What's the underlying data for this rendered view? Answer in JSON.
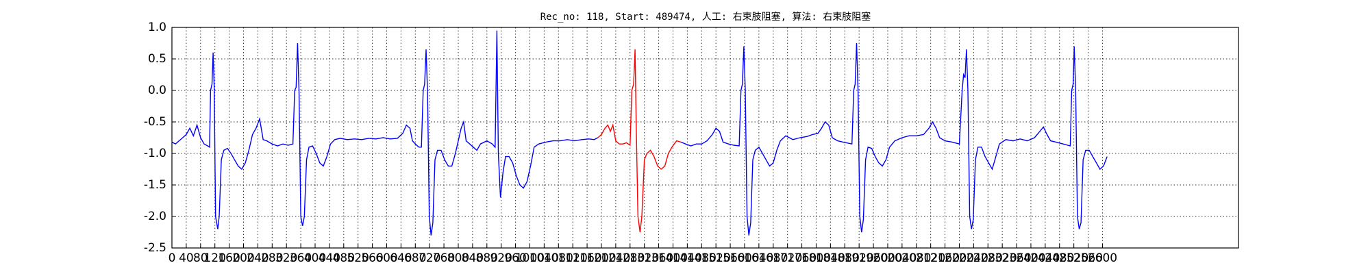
{
  "chart_data": {
    "type": "line",
    "title": "Rec_no: 118, Start: 489474, 人工: 右束肢阻塞, 算法: 右束肢阻塞",
    "xlim": [
      0,
      2980
    ],
    "ylim": [
      -2.5,
      1.0
    ],
    "xticks": [
      0,
      40,
      80,
      120,
      160,
      200,
      240,
      280,
      320,
      360,
      400,
      440,
      480,
      520,
      560,
      600,
      640,
      680,
      720,
      760,
      800,
      840,
      880,
      920,
      960,
      1000,
      1040,
      1080,
      1120,
      1160,
      1200,
      1240,
      1280,
      1320,
      1360,
      1400,
      1440,
      1480,
      1520,
      1560,
      1600,
      1640,
      1680,
      1720,
      1760,
      1800,
      1840,
      1880,
      1920,
      1960,
      2000,
      2040,
      2080,
      2120,
      2160,
      2200,
      2240,
      2280,
      2320,
      2360,
      2400,
      2440,
      2480,
      2520,
      2560,
      2600
    ],
    "yticks": [
      {
        "value": -2.5,
        "label": "-2.5"
      },
      {
        "value": -2.0,
        "label": "-2.0"
      },
      {
        "value": -1.5,
        "label": "-1.5"
      },
      {
        "value": -1.0,
        "label": "-1.0"
      },
      {
        "value": -0.5,
        "label": "-0.5"
      },
      {
        "value": 0.0,
        "label": "0.0"
      },
      {
        "value": 0.5,
        "label": "0.5"
      },
      {
        "value": 1.0,
        "label": "1.0"
      }
    ],
    "grid": true,
    "series": [
      {
        "color": "#0000ff",
        "x": [
          0,
          10,
          20,
          30,
          40,
          50,
          60,
          70,
          80,
          90,
          100,
          105,
          108,
          112,
          115,
          118,
          122,
          128,
          132,
          138,
          145,
          155,
          165,
          175,
          185,
          195,
          205,
          215,
          225,
          235,
          245,
          255,
          265,
          280,
          295,
          310,
          325,
          338,
          343,
          347,
          351,
          355,
          360,
          365,
          370,
          376,
          383,
          393,
          403,
          413,
          423,
          433,
          443,
          455,
          470,
          490,
          510,
          530,
          550,
          570,
          590,
          610,
          630,
          645,
          655,
          665,
          672,
          680,
          690,
          697,
          702,
          706,
          710,
          714,
          719,
          724,
          729,
          735,
          742,
          752,
          762,
          772,
          782,
          792,
          800,
          808,
          815,
          822,
          832,
          842,
          852,
          862,
          880,
          895,
          903,
          908,
          912,
          918,
          925,
          932,
          942,
          952,
          962,
          972,
          982,
          992,
          1002,
          1012,
          1025,
          1045,
          1065,
          1085,
          1105,
          1125,
          1145,
          1165,
          1180,
          1190,
          1300,
          1422,
          1435,
          1450,
          1465,
          1480,
          1495,
          1510,
          1520,
          1530,
          1540,
          1555,
          1570,
          1585,
          1590,
          1594,
          1598,
          1602,
          1607,
          1612,
          1617,
          1623,
          1630,
          1640,
          1650,
          1660,
          1670,
          1680,
          1690,
          1700,
          1715,
          1735,
          1755,
          1775,
          1790,
          1805,
          1815,
          1825,
          1835,
          1845,
          1860,
          1875,
          1900,
          1905,
          1909,
          1913,
          1917,
          1922,
          1927,
          1932,
          1938,
          1945,
          1955,
          1965,
          1975,
          1985,
          1995,
          2005,
          2020,
          2040,
          2060,
          2080,
          2100,
          2115,
          2125,
          2135,
          2145,
          2160,
          2180,
          2200,
          2208,
          2212,
          2216,
          2220,
          2224,
          2229,
          2234,
          2239,
          2245,
          2252,
          2262,
          2272,
          2282,
          2292,
          2302,
          2312,
          2330,
          2350,
          2370,
          2390,
          2410,
          2425,
          2435,
          2445,
          2455,
          2470,
          2490,
          2510,
          2514,
          2518,
          2521,
          2525,
          2530,
          2535,
          2540,
          2546,
          2553,
          2563,
          2573,
          2583,
          2593,
          2603,
          2613
        ],
        "values": [
          -0.82,
          -0.85,
          -0.8,
          -0.75,
          -0.7,
          -0.6,
          -0.72,
          -0.55,
          -0.75,
          -0.85,
          -0.88,
          -0.9,
          0.0,
          0.1,
          0.6,
          0.05,
          -2.0,
          -2.2,
          -2.0,
          -1.1,
          -0.95,
          -0.92,
          -1.0,
          -1.1,
          -1.2,
          -1.25,
          -1.15,
          -0.95,
          -0.7,
          -0.6,
          -0.45,
          -0.78,
          -0.8,
          -0.85,
          -0.88,
          -0.85,
          -0.87,
          -0.85,
          0.0,
          0.05,
          0.75,
          0.0,
          -2.0,
          -2.15,
          -2.0,
          -1.1,
          -0.9,
          -0.88,
          -1.0,
          -1.15,
          -1.2,
          -1.05,
          -0.85,
          -0.78,
          -0.76,
          -0.78,
          -0.77,
          -0.78,
          -0.76,
          -0.77,
          -0.75,
          -0.77,
          -0.76,
          -0.68,
          -0.55,
          -0.6,
          -0.8,
          -0.85,
          -0.9,
          -0.9,
          0.0,
          0.1,
          0.65,
          0.0,
          -2.0,
          -2.3,
          -2.1,
          -1.1,
          -0.95,
          -0.95,
          -1.1,
          -1.2,
          -1.2,
          -1.0,
          -0.8,
          -0.6,
          -0.5,
          -0.8,
          -0.85,
          -0.9,
          -0.95,
          -0.85,
          -0.8,
          -0.85,
          -0.9,
          0.95,
          -1.0,
          -1.7,
          -1.3,
          -1.05,
          -1.05,
          -1.15,
          -1.35,
          -1.5,
          -1.55,
          -1.45,
          -1.2,
          -0.9,
          -0.85,
          -0.82,
          -0.8,
          -0.8,
          -0.78,
          -0.8,
          -0.78,
          -0.77,
          -0.78,
          -0.75,
          null,
          -0.82,
          -0.85,
          -0.88,
          -0.85,
          -0.85,
          -0.8,
          -0.7,
          -0.6,
          -0.65,
          -0.82,
          -0.85,
          -0.87,
          -0.88,
          0.0,
          0.1,
          0.7,
          0.0,
          -2.0,
          -2.3,
          -2.1,
          -1.1,
          -0.95,
          -0.9,
          -1.0,
          -1.1,
          -1.2,
          -1.15,
          -0.95,
          -0.8,
          -0.72,
          -0.78,
          -0.75,
          -0.73,
          -0.7,
          -0.68,
          -0.6,
          -0.5,
          -0.55,
          -0.75,
          -0.8,
          -0.82,
          -0.85,
          0.0,
          0.1,
          0.75,
          0.0,
          -2.0,
          -2.25,
          -2.05,
          -1.1,
          -0.9,
          -0.92,
          -1.05,
          -1.15,
          -1.2,
          -1.1,
          -0.9,
          -0.8,
          -0.75,
          -0.72,
          -0.72,
          -0.7,
          -0.6,
          -0.5,
          -0.6,
          -0.75,
          -0.8,
          -0.82,
          -0.85,
          0.0,
          0.25,
          0.2,
          0.65,
          0.0,
          -2.0,
          -2.2,
          -2.05,
          -1.1,
          -0.9,
          -0.9,
          -1.05,
          -1.15,
          -1.25,
          -1.05,
          -0.85,
          -0.78,
          -0.8,
          -0.77,
          -0.8,
          -0.75,
          -0.65,
          -0.58,
          -0.7,
          -0.8,
          -0.82,
          -0.85,
          -0.88,
          0.0,
          0.1,
          0.7,
          0.0,
          -2.0,
          -2.2,
          -2.1,
          -1.1,
          -0.95,
          -0.95,
          -1.05,
          -1.15,
          -1.25,
          -1.2,
          -1.05
        ]
      },
      {
        "color": "#ff0000",
        "x": [
          1190,
          1200,
          1210,
          1218,
          1225,
          1232,
          1240,
          1250,
          1260,
          1270,
          1280,
          1285,
          1290,
          1294,
          1297,
          1302,
          1308,
          1313,
          1320,
          1327,
          1337,
          1347,
          1357,
          1367,
          1377,
          1387,
          1397,
          1410,
          1422
        ],
        "values": [
          -0.75,
          -0.7,
          -0.6,
          -0.55,
          -0.65,
          -0.55,
          -0.8,
          -0.85,
          -0.85,
          -0.83,
          -0.87,
          0.0,
          0.1,
          0.65,
          -0.5,
          -2.0,
          -2.25,
          -2.0,
          -1.1,
          -1.0,
          -0.95,
          -1.05,
          -1.2,
          -1.25,
          -1.2,
          -1.0,
          -0.9,
          -0.8,
          -0.82
        ]
      }
    ]
  }
}
